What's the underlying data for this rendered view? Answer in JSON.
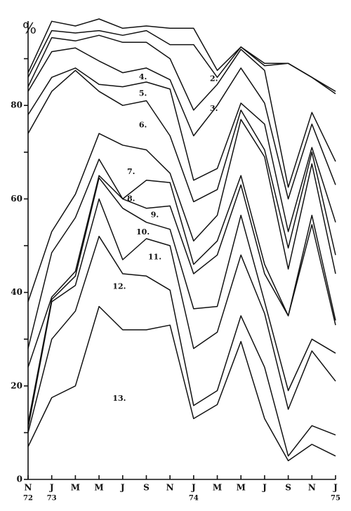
{
  "chart_data": {
    "type": "stacked_line",
    "y_label": "%",
    "categories": [
      "N",
      "J",
      "M",
      "M",
      "J",
      "S",
      "N",
      "J",
      "M",
      "M",
      "J",
      "S",
      "N",
      "J"
    ],
    "x_sublabels": [
      "72",
      "73",
      null,
      null,
      null,
      null,
      null,
      "74",
      null,
      null,
      null,
      null,
      null,
      "75"
    ],
    "ylim": [
      0,
      100
    ],
    "yticks": [
      0,
      20,
      40,
      60,
      80
    ],
    "minor_yticks": [
      10,
      30,
      50,
      70,
      90
    ],
    "color": "#111111",
    "series": [
      {
        "name": "13.",
        "values": [
          7,
          17.5,
          20,
          37,
          32,
          32,
          33,
          13,
          16,
          29.5,
          13,
          4,
          7.5,
          5
        ]
      },
      {
        "name": "12.",
        "values": [
          3,
          12.5,
          16,
          15,
          12,
          11.5,
          7.5,
          2.8,
          3,
          5.5,
          11,
          1,
          4,
          4.5
        ]
      },
      {
        "name": "11.",
        "values": [
          1,
          8,
          5.5,
          8,
          3,
          8,
          9.5,
          12.2,
          12.5,
          13,
          11.5,
          10,
          16,
          11.5
        ]
      },
      {
        "name": "10.",
        "values": [
          1,
          0.5,
          2,
          4.5,
          11,
          3.5,
          3.5,
          8.5,
          5.5,
          8.5,
          2.5,
          4,
          2.5,
          6
        ]
      },
      {
        "name": "9.",
        "values": [
          12,
          0.5,
          1,
          0.5,
          2,
          3,
          5,
          7.5,
          11,
          6.5,
          6,
          16,
          24.5,
          6
        ]
      },
      {
        "name": "8.",
        "values": [
          4,
          9.5,
          11.5,
          3.5,
          0,
          6,
          5,
          2,
          3,
          2,
          2,
          0,
          2,
          1
        ]
      },
      {
        "name": "7.",
        "values": [
          10,
          4.5,
          5,
          5.5,
          11.5,
          6.5,
          2,
          5,
          5.5,
          12,
          23,
          10,
          11,
          10
        ]
      },
      {
        "name": "6.",
        "values": [
          36,
          30,
          26.5,
          9,
          8.5,
          10.5,
          8,
          8.4,
          5.5,
          2,
          1.5,
          4.5,
          2.5,
          4
        ]
      },
      {
        "name": "5.",
        "values": [
          4,
          3,
          0.5,
          1.5,
          4,
          4,
          10,
          4.6,
          4.5,
          1.5,
          5.5,
          3.5,
          1,
          7
        ]
      },
      {
        "name": "4.",
        "values": [
          5,
          5.5,
          4.3,
          5,
          3,
          3,
          2,
          9.5,
          13.5,
          7.5,
          4.5,
          7,
          5,
          8
        ]
      },
      {
        "name": "3.",
        "values": [
          1,
          3,
          1.5,
          5.5,
          6.5,
          5.5,
          4.5,
          5.5,
          4.5,
          4,
          7,
          2.5,
          2.5,
          5
        ]
      },
      {
        "name": "2.",
        "values": [
          2,
          1.5,
          1.7,
          1,
          1.5,
          2.5,
          3,
          14,
          1.5,
          0.5,
          1,
          26.5,
          7.5,
          14.5
        ]
      },
      {
        "values": [
          1,
          2,
          1.5,
          2.5,
          1.5,
          1,
          3.5,
          3.5,
          1.5,
          0,
          0.5,
          0,
          0,
          0.5
        ]
      }
    ]
  }
}
